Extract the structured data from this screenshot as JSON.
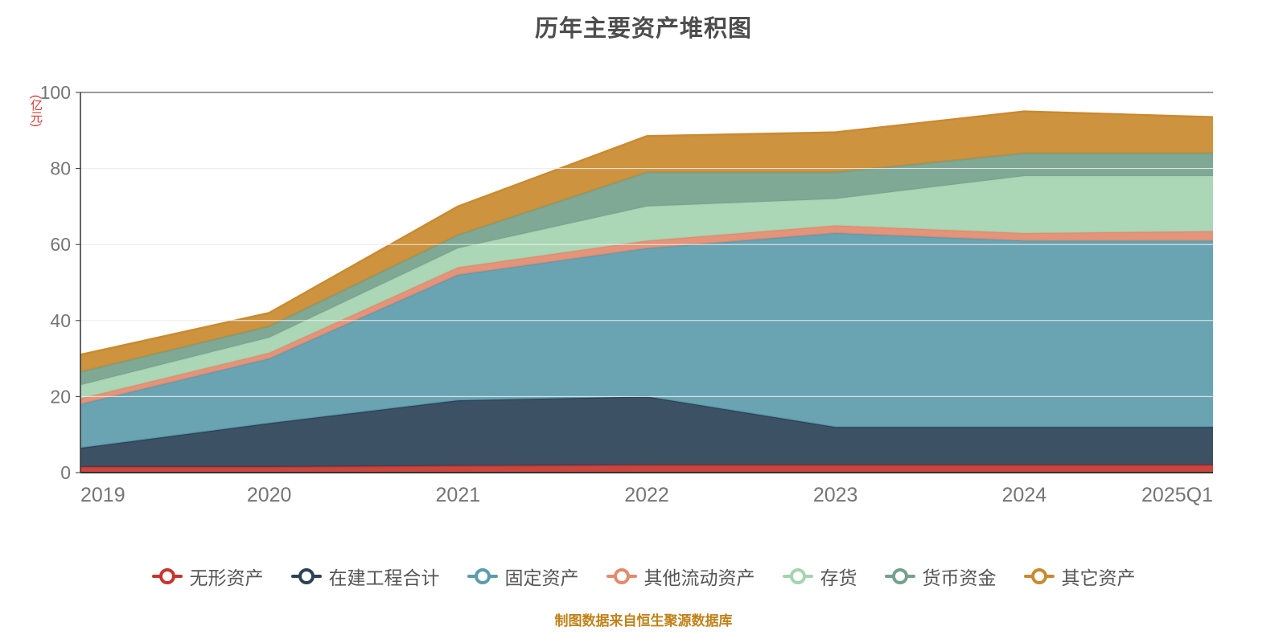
{
  "title": "历年主要资产堆积图",
  "y_axis_name": "(亿元)",
  "footer_note": "制图数据来自恒生聚源数据库",
  "styles": {
    "title_color": "#4d4d4d",
    "axis_label_color": "#757575",
    "axis_line_color": "#333333",
    "gridline_color": "#ececec",
    "y_axis_name_color": "#d23a2e",
    "legend_text_color": "#555555",
    "footer_color": "#c08119"
  },
  "chart_data": {
    "type": "area",
    "stacked": true,
    "title": "历年主要资产堆积图",
    "ylabel": "(亿元)",
    "xlabel": "",
    "ylim": [
      0,
      100
    ],
    "yticks": [
      0,
      20,
      40,
      60,
      80,
      100
    ],
    "grid": true,
    "legend_position": "bottom",
    "categories": [
      "2019",
      "2020",
      "2021",
      "2022",
      "2023",
      "2024",
      "2025Q1"
    ],
    "series": [
      {
        "name": "无形资产",
        "color": "#c5352e",
        "values": [
          1.5,
          1.5,
          1.8,
          2.0,
          2.0,
          2.0,
          2.0
        ]
      },
      {
        "name": "在建工程合计",
        "color": "#2c4257",
        "values": [
          5.0,
          11.5,
          17.2,
          18.0,
          10.0,
          10.0,
          10.0
        ]
      },
      {
        "name": "固定资产",
        "color": "#5d9cad",
        "values": [
          11.5,
          17.0,
          33.0,
          39.0,
          51.0,
          49.0,
          49.0
        ]
      },
      {
        "name": "其他流动资产",
        "color": "#e28b6f",
        "values": [
          1.5,
          1.5,
          2.0,
          2.0,
          2.0,
          2.0,
          2.5
        ]
      },
      {
        "name": "存货",
        "color": "#a5d4b0",
        "values": [
          3.5,
          4.0,
          5.0,
          9.0,
          7.0,
          15.0,
          14.5
        ]
      },
      {
        "name": "货币资金",
        "color": "#74a18c",
        "values": [
          3.5,
          3.0,
          3.5,
          9.0,
          7.0,
          6.0,
          6.0
        ]
      },
      {
        "name": "其它资产",
        "color": "#ca8a2f",
        "values": [
          4.5,
          3.5,
          7.5,
          9.5,
          10.5,
          11.0,
          9.5
        ]
      }
    ]
  }
}
